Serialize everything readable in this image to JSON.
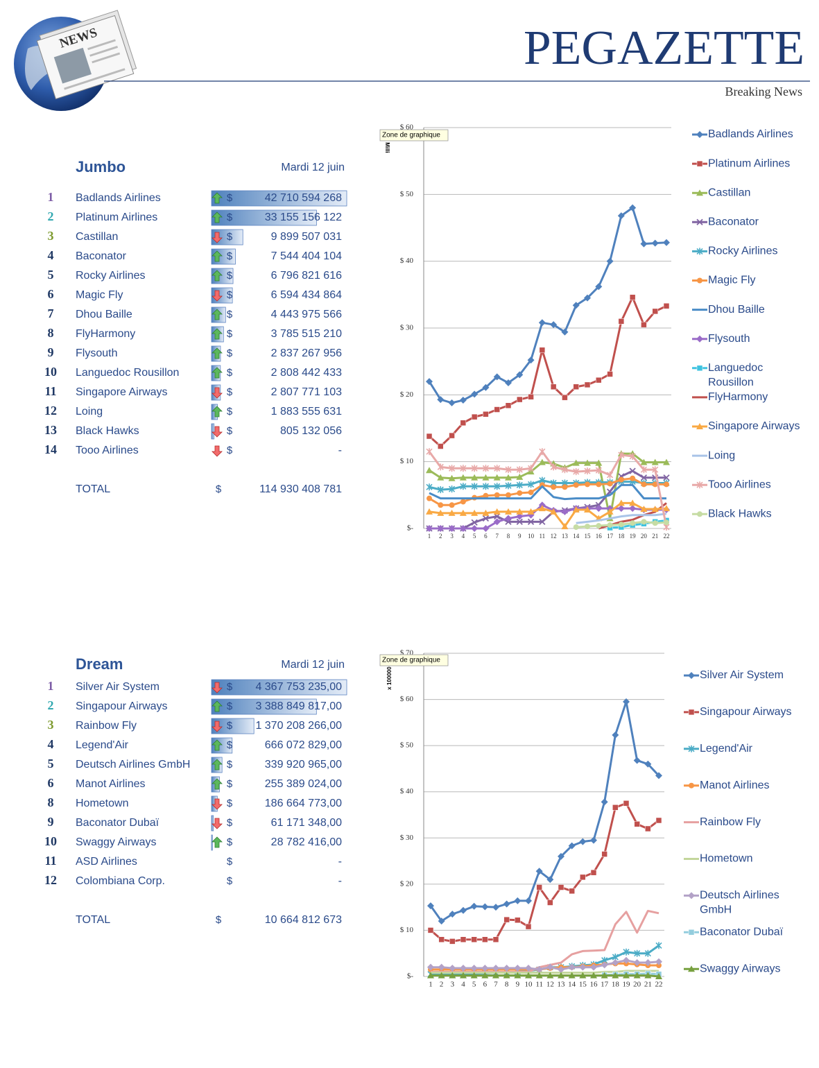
{
  "header": {
    "logo_text": "NEWS",
    "title": "PEGAZETTE",
    "subtitle": "Breaking News"
  },
  "sections": [
    {
      "title": "Jumbo",
      "date": "Mardi 12 juin",
      "currency": "$",
      "rows": [
        {
          "rank": 1,
          "name": "Badlands Airlines",
          "trend": "up",
          "amount": {
            "value": 42710594268,
            "label": "42 710 594 268"
          }
        },
        {
          "rank": 2,
          "name": "Platinum Airlines",
          "trend": "up",
          "amount": {
            "value": 33155156122,
            "label": "33 155 156 122"
          }
        },
        {
          "rank": 3,
          "name": "Castillan",
          "trend": "down",
          "amount": {
            "value": 9899507031,
            "label": "9 899 507 031"
          }
        },
        {
          "rank": 4,
          "name": "Baconator",
          "trend": "up",
          "amount": {
            "value": 7544404104,
            "label": "7 544 404 104"
          }
        },
        {
          "rank": 5,
          "name": "Rocky Airlines",
          "trend": "up",
          "amount": {
            "value": 6796821616,
            "label": "6 796 821 616"
          }
        },
        {
          "rank": 6,
          "name": "Magic Fly",
          "trend": "down",
          "amount": {
            "value": 6594434864,
            "label": "6 594 434 864"
          }
        },
        {
          "rank": 7,
          "name": "Dhou Baille",
          "trend": "up",
          "amount": {
            "value": 4443975566,
            "label": "4 443 975 566"
          }
        },
        {
          "rank": 8,
          "name": "FlyHarmony",
          "trend": "up",
          "amount": {
            "value": 3785515210,
            "label": "3 785 515 210"
          }
        },
        {
          "rank": 9,
          "name": "Flysouth",
          "trend": "up",
          "amount": {
            "value": 2837267956,
            "label": "2 837 267 956"
          }
        },
        {
          "rank": 10,
          "name": "Languedoc Rousillon",
          "trend": "up",
          "amount": {
            "value": 2808442433,
            "label": "2 808 442 433"
          }
        },
        {
          "rank": 11,
          "name": "Singapore Airways",
          "trend": "down",
          "amount": {
            "value": 2807771103,
            "label": "2 807 771 103"
          }
        },
        {
          "rank": 12,
          "name": "Loing",
          "trend": "up",
          "amount": {
            "value": 1883555631,
            "label": "1 883 555 631"
          }
        },
        {
          "rank": 13,
          "name": "Black Hawks",
          "trend": "down",
          "amount": {
            "value": 805132056,
            "label": "805 132 056"
          }
        },
        {
          "rank": 14,
          "name": "Tooo Airlines",
          "trend": "down",
          "amount": {
            "value": null,
            "label": "-"
          }
        }
      ],
      "total": {
        "label": "TOTAL",
        "amount": {
          "value": 114930408781,
          "label": "114 930 408 781"
        }
      }
    },
    {
      "title": "Dream",
      "date": "Mardi 12 juin",
      "currency": "$",
      "rows": [
        {
          "rank": 1,
          "name": "Silver Air System",
          "trend": "down",
          "amount": {
            "value": 4367753235,
            "label": "4 367 753 235,00"
          }
        },
        {
          "rank": 2,
          "name": "Singapour Airways",
          "trend": "up",
          "amount": {
            "value": 3388849817,
            "label": "3 388 849 817,00"
          }
        },
        {
          "rank": 3,
          "name": "Rainbow Fly",
          "trend": "down",
          "amount": {
            "value": 1370208266,
            "label": "1 370 208 266,00"
          }
        },
        {
          "rank": 4,
          "name": "Legend'Air",
          "trend": "up",
          "amount": {
            "value": 666072829,
            "label": "666 072 829,00"
          }
        },
        {
          "rank": 5,
          "name": "Deutsch Airlines GmbH",
          "trend": "up",
          "amount": {
            "value": 339920965,
            "label": "339 920 965,00"
          }
        },
        {
          "rank": 6,
          "name": "Manot Airlines",
          "trend": "up",
          "amount": {
            "value": 255389024,
            "label": "255 389 024,00"
          }
        },
        {
          "rank": 8,
          "name": "Hometown",
          "trend": "down",
          "amount": {
            "value": 186664773,
            "label": "186 664 773,00"
          }
        },
        {
          "rank": 9,
          "name": "Baconator Dubaï",
          "trend": "down",
          "amount": {
            "value": 61171348,
            "label": "61 171 348,00"
          }
        },
        {
          "rank": 10,
          "name": "Swaggy Airways",
          "trend": "up",
          "amount": {
            "value": 28782416,
            "label": "28 782 416,00"
          }
        },
        {
          "rank": 11,
          "name": "ASD Airlines",
          "amount": {
            "value": null,
            "label": "-"
          }
        },
        {
          "rank": 12,
          "name": "Colombiana Corp.",
          "amount": {
            "value": null,
            "label": "-"
          }
        }
      ],
      "total": {
        "label": "TOTAL",
        "amount": {
          "value": 10664812673,
          "label": "10 664 812 673"
        }
      }
    }
  ],
  "chart_data": [
    {
      "type": "line",
      "tooltip": "Zone de graphique",
      "y_label": "Milli",
      "categories": [
        1,
        2,
        3,
        4,
        5,
        6,
        7,
        8,
        9,
        10,
        11,
        12,
        13,
        14,
        15,
        16,
        17,
        18,
        19,
        20,
        21,
        22
      ],
      "ylim": [
        0,
        60
      ],
      "yticks": [
        {
          "value": 0,
          "label": "$-"
        },
        {
          "value": 10,
          "label": "$ 10"
        },
        {
          "value": 20,
          "label": "$ 20"
        },
        {
          "value": 30,
          "label": "$ 30"
        },
        {
          "value": 40,
          "label": "$ 40"
        },
        {
          "value": 50,
          "label": "$ 50"
        },
        {
          "value": 60,
          "label": "$ 60"
        }
      ],
      "grid": true,
      "series": [
        {
          "name": "Badlands Airlines",
          "color": "#4f81bd",
          "marker": "diamond",
          "values": [
            22,
            19.3,
            18.8,
            19.2,
            20.1,
            21.1,
            22.7,
            21.8,
            23,
            25.2,
            30.8,
            30.5,
            29.4,
            33.4,
            34.5,
            36.2,
            40,
            46.8,
            48,
            42.6,
            42.7,
            42.8
          ]
        },
        {
          "name": "Platinum Airlines",
          "color": "#c0504d",
          "marker": "square",
          "values": [
            13.8,
            12.3,
            13.9,
            15.8,
            16.7,
            17.1,
            17.8,
            18.4,
            19.3,
            19.7,
            26.7,
            21.2,
            19.6,
            21.2,
            21.5,
            22.2,
            23.1,
            31,
            34.6,
            30.5,
            32.5,
            33.3
          ]
        },
        {
          "name": "Castillan",
          "color": "#9bbb59",
          "marker": "triangle",
          "values": [
            8.7,
            7.6,
            7.5,
            7.6,
            7.6,
            7.6,
            7.6,
            7.6,
            7.7,
            8.5,
            9.9,
            9.7,
            9.1,
            9.8,
            9.8,
            9.8,
            1.5,
            11.2,
            11.2,
            9.9,
            9.9,
            9.9
          ]
        },
        {
          "name": "Baconator",
          "color": "#8064a2",
          "marker": "x",
          "values": [
            0,
            0,
            0,
            0,
            0.9,
            1.5,
            1.8,
            1,
            1,
            1,
            1,
            2.5,
            2.7,
            3,
            3.2,
            3.5,
            5.5,
            7.8,
            8.6,
            7.6,
            7.6,
            7.6
          ]
        },
        {
          "name": "Rocky Airlines",
          "color": "#4bacc6",
          "marker": "star",
          "values": [
            6.2,
            5.8,
            5.9,
            6.3,
            6.3,
            6.3,
            6.3,
            6.4,
            6.5,
            6.6,
            7.2,
            6.8,
            6.8,
            6.8,
            6.9,
            6.9,
            6.9,
            7,
            7,
            6.8,
            6.8,
            6.8
          ]
        },
        {
          "name": "Magic Fly",
          "color": "#f79646",
          "marker": "circle",
          "values": [
            4.5,
            3.5,
            3.5,
            4,
            4.6,
            4.9,
            5,
            5,
            5.3,
            5.4,
            6.5,
            6.2,
            6.2,
            6.5,
            6.6,
            6.6,
            6.7,
            7.3,
            7.5,
            6.6,
            6.6,
            6.6
          ]
        },
        {
          "name": "Dhou Baille",
          "color": "#4a8cc7",
          "marker": "none",
          "values": [
            5.3,
            4.5,
            4.5,
            4.5,
            4.5,
            4.5,
            4.5,
            4.5,
            4.5,
            4.5,
            6.3,
            4.7,
            4.4,
            4.5,
            4.5,
            4.5,
            5,
            6.5,
            6.5,
            4.5,
            4.5,
            4.5
          ]
        },
        {
          "name": "Flysouth",
          "color": "#9a6cc8",
          "marker": "diamond",
          "values": [
            0,
            0,
            0,
            0,
            0,
            0,
            1,
            1.5,
            1.8,
            2,
            3.5,
            2.7,
            2.5,
            3,
            3,
            3,
            3,
            3,
            3,
            2.8,
            2.8,
            2.8
          ]
        },
        {
          "name": "Languedoc Rousillon",
          "color": "#3fc3e0",
          "marker": "square",
          "values": [
            null,
            null,
            null,
            null,
            null,
            null,
            null,
            null,
            null,
            null,
            null,
            null,
            null,
            null,
            null,
            null,
            0.1,
            0.2,
            0.5,
            0.7,
            1,
            1.2
          ]
        },
        {
          "name": "FlyHarmony",
          "color": "#c0504d",
          "marker": "none",
          "values": [
            null,
            null,
            null,
            null,
            null,
            null,
            null,
            null,
            null,
            null,
            null,
            null,
            null,
            null,
            null,
            0,
            0.5,
            1,
            1.3,
            2,
            2.5,
            3.8
          ]
        },
        {
          "name": "Singapore Airways",
          "color": "#f9a944",
          "marker": "triangle",
          "values": [
            2.5,
            2.3,
            2.3,
            2.3,
            2.3,
            2.3,
            2.5,
            2.5,
            2.5,
            2.5,
            3,
            2.5,
            0.3,
            2.8,
            2.8,
            1.5,
            2.5,
            3.8,
            3.8,
            2.9,
            2.9,
            3
          ]
        },
        {
          "name": "Loing",
          "color": "#a9c4e8",
          "marker": "none",
          "values": [
            null,
            null,
            null,
            null,
            null,
            null,
            null,
            null,
            null,
            null,
            null,
            null,
            null,
            0.8,
            1,
            1.2,
            1.5,
            1.8,
            2,
            2,
            2,
            2.2
          ]
        },
        {
          "name": "Tooo Airlines",
          "color": "#e8a9a8",
          "marker": "star",
          "values": [
            11.5,
            9.2,
            9,
            9,
            9,
            9,
            9,
            8.8,
            8.8,
            9,
            11.5,
            9.2,
            8.8,
            8.5,
            8.6,
            8.7,
            8,
            11,
            10.8,
            8.8,
            8.8,
            0.2
          ]
        },
        {
          "name": "Black Hawks",
          "color": "#c6dca4",
          "marker": "circle",
          "values": [
            null,
            null,
            null,
            null,
            null,
            null,
            null,
            null,
            null,
            null,
            null,
            null,
            null,
            0.2,
            0.3,
            0.4,
            0.5,
            0.6,
            0.8,
            1,
            0.8,
            0.9
          ]
        }
      ]
    },
    {
      "type": "line",
      "tooltip": "Zone de graphique",
      "y_label": "x 100000",
      "categories": [
        1,
        2,
        3,
        4,
        5,
        6,
        7,
        8,
        9,
        10,
        11,
        12,
        13,
        14,
        15,
        16,
        17,
        18,
        19,
        20,
        21,
        22
      ],
      "ylim": [
        0,
        70
      ],
      "yticks": [
        {
          "value": 0,
          "label": "$-"
        },
        {
          "value": 10,
          "label": "$ 10"
        },
        {
          "value": 20,
          "label": "$ 20"
        },
        {
          "value": 30,
          "label": "$ 30"
        },
        {
          "value": 40,
          "label": "$ 40"
        },
        {
          "value": 50,
          "label": "$ 50"
        },
        {
          "value": 60,
          "label": "$ 60"
        },
        {
          "value": 70,
          "label": "$ 70"
        }
      ],
      "grid": true,
      "series": [
        {
          "name": "Silver Air System",
          "color": "#4f81bd",
          "marker": "diamond",
          "values": [
            15.3,
            12,
            13.5,
            14.3,
            15.2,
            15.1,
            15,
            15.7,
            16.4,
            16.4,
            22.8,
            21,
            26,
            28.3,
            29.2,
            29.5,
            37.8,
            52.3,
            59.5,
            46.8,
            46,
            43.5
          ]
        },
        {
          "name": "Singapour Airways",
          "color": "#c0504d",
          "marker": "square",
          "values": [
            10,
            8,
            7.6,
            8,
            8,
            8,
            8,
            12.3,
            12.2,
            10.8,
            19.3,
            16,
            19.3,
            18.5,
            21.5,
            22.5,
            26.5,
            36.6,
            37.5,
            33,
            32,
            33.8
          ]
        },
        {
          "name": "Legend'Air",
          "color": "#4bacc6",
          "marker": "star",
          "values": [
            0.5,
            0.5,
            0.5,
            0.6,
            0.6,
            0.7,
            0.8,
            0.9,
            1,
            1.2,
            1.5,
            2,
            2,
            2.2,
            2.4,
            2.6,
            3.5,
            4.2,
            5.3,
            5,
            5,
            6.7
          ]
        },
        {
          "name": "Manot Airlines",
          "color": "#f79646",
          "marker": "circle",
          "values": [
            1.5,
            1.5,
            1.5,
            1.5,
            1.5,
            1.5,
            1.5,
            1.5,
            1.5,
            1.5,
            1.5,
            1.8,
            2,
            2,
            2.2,
            2.4,
            2.6,
            2.8,
            2.8,
            2.6,
            2.4,
            2.4
          ]
        },
        {
          "name": "Rainbow Fly",
          "color": "#e6a0a0",
          "marker": "none",
          "values": [
            1,
            1,
            1,
            1,
            1,
            1,
            1,
            1,
            1,
            1,
            2,
            2.5,
            3,
            4.8,
            5.5,
            5.6,
            5.7,
            11.3,
            14,
            9.5,
            14.2,
            13.7
          ]
        },
        {
          "name": "Hometown",
          "color": "#c3d69b",
          "marker": "none",
          "values": [
            0.8,
            0.8,
            0.8,
            0.8,
            0.8,
            0.8,
            0.8,
            0.8,
            0.8,
            0.8,
            0.8,
            0.8,
            0.8,
            0.8,
            0.8,
            0.8,
            1,
            1,
            1.2,
            1.2,
            1.2,
            1.2
          ]
        },
        {
          "name": "Deutsch Airlines GmbH",
          "color": "#b3a2c7",
          "marker": "diamond",
          "values": [
            2,
            2,
            1.8,
            1.8,
            1.8,
            1.8,
            1.8,
            1.8,
            1.8,
            1.8,
            1.5,
            2,
            1.5,
            2,
            2,
            2,
            2.5,
            3,
            3.5,
            3,
            3,
            3.2
          ]
        },
        {
          "name": "Baconator Dubaï",
          "color": "#93cddd",
          "marker": "square",
          "values": [
            null,
            null,
            null,
            null,
            null,
            null,
            null,
            null,
            null,
            null,
            null,
            null,
            null,
            null,
            null,
            null,
            0.3,
            0.4,
            0.5,
            0.5,
            0.6,
            0.5
          ]
        },
        {
          "name": "Swaggy Airways",
          "color": "#77a03f",
          "marker": "triangle",
          "values": [
            0.2,
            0.2,
            0.2,
            0.2,
            0.2,
            0.2,
            0.2,
            0.2,
            0.2,
            0.2,
            0.2,
            0.2,
            0.2,
            0.2,
            0.2,
            0.2,
            0.2,
            0.2,
            0.2,
            0.2,
            0.2,
            0
          ]
        }
      ]
    }
  ]
}
